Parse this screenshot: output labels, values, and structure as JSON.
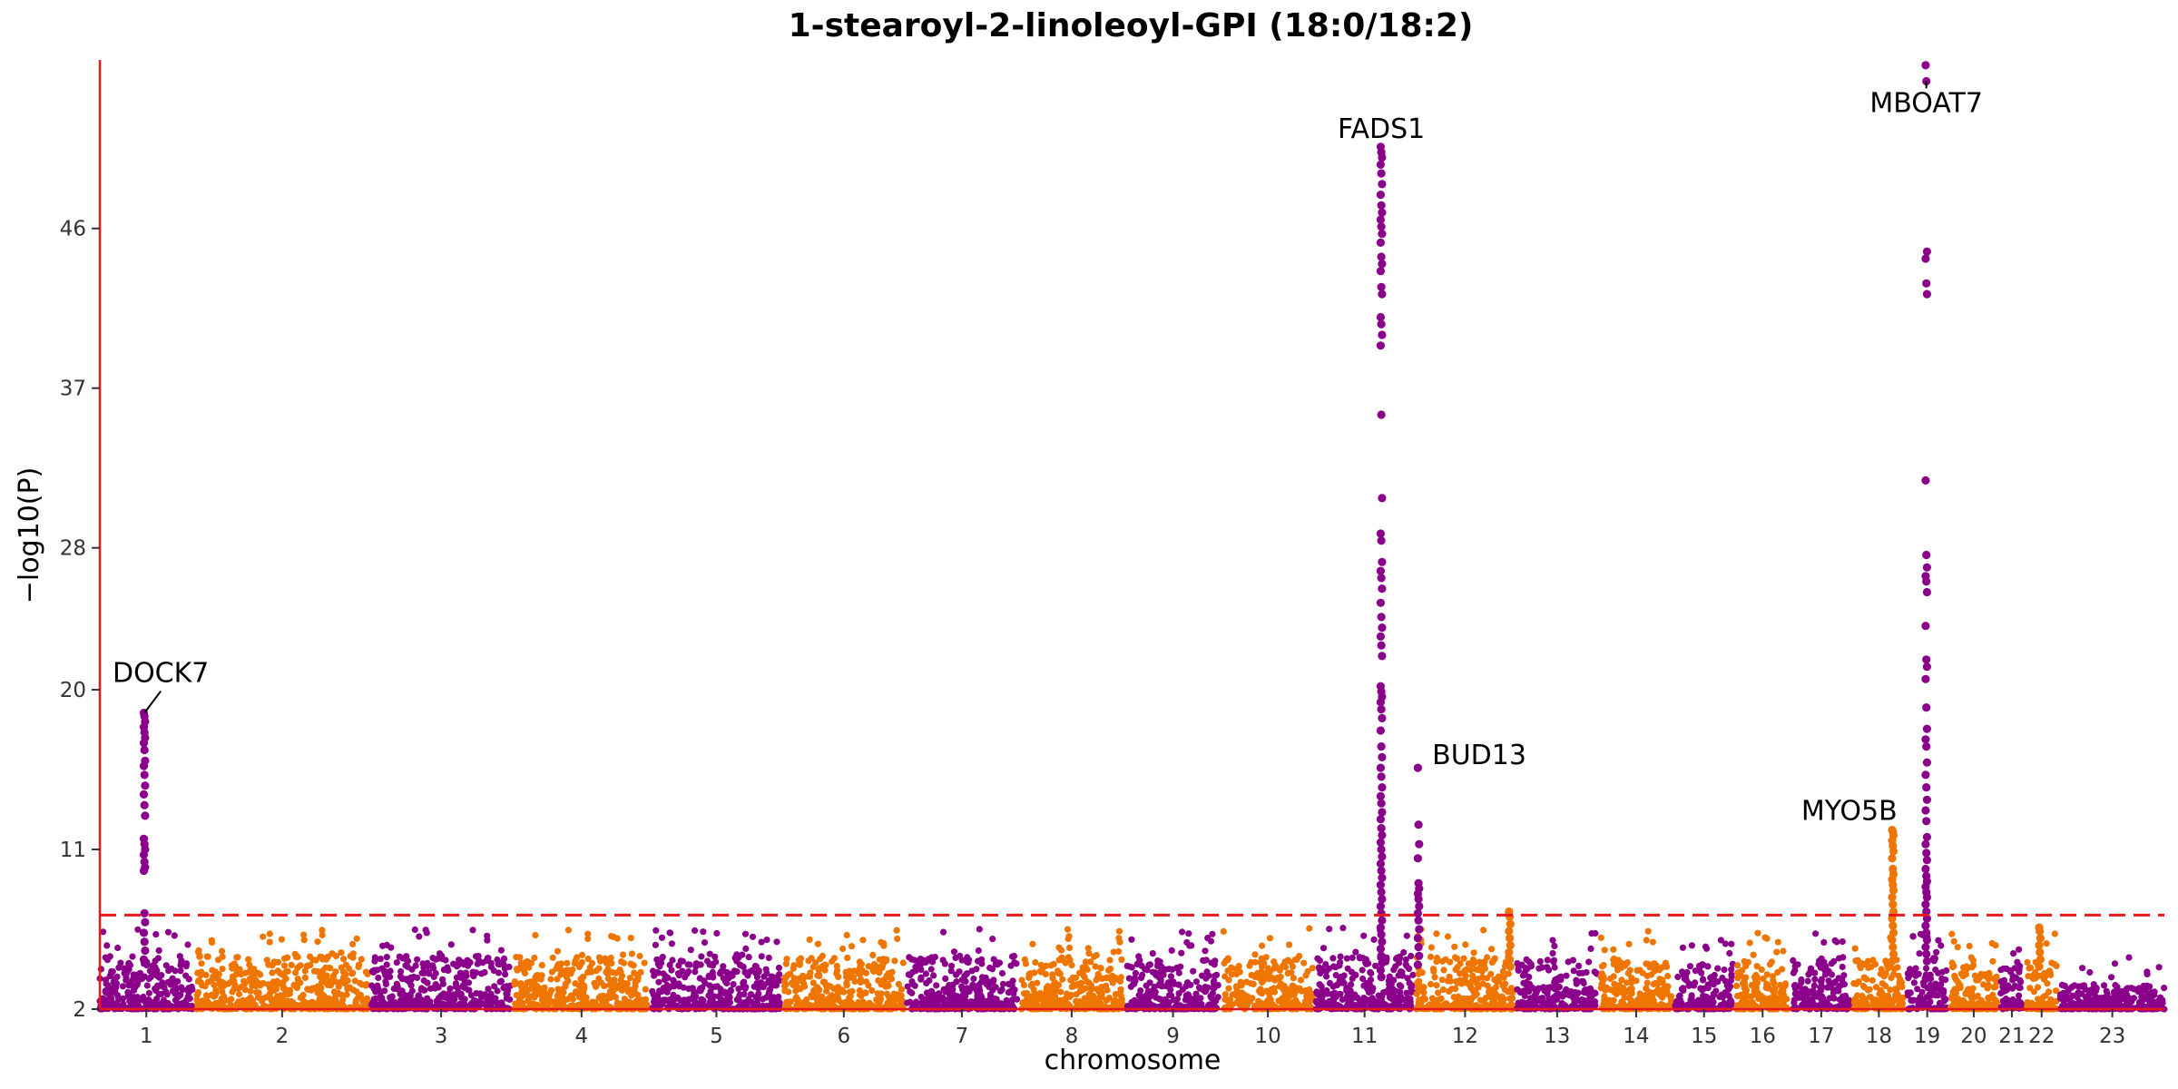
{
  "chart_data": {
    "type": "scatter",
    "title": "1-stearoyl-2-linoleoyl-GPI (18:0/18:2)",
    "xlabel": "chromosome",
    "ylabel": "−log10(P)",
    "ylim": [
      2,
      55.5
    ],
    "yticks": [
      2,
      11,
      20,
      28,
      37,
      46
    ],
    "threshold": 7.3,
    "grid": false,
    "legend": "none",
    "colors": {
      "odd": "#8B008B",
      "even": "#EE7600",
      "axis": "#e8191c",
      "threshold": "#e8191c"
    },
    "chromosomes": [
      {
        "label": "1",
        "start": 0,
        "end": 50,
        "height": 3.0
      },
      {
        "label": "2",
        "start": 52,
        "end": 144,
        "height": 3.0
      },
      {
        "label": "3",
        "start": 146,
        "end": 221,
        "height": 3.0
      },
      {
        "label": "4",
        "start": 223,
        "end": 295,
        "height": 3.0
      },
      {
        "label": "5",
        "start": 297,
        "end": 366,
        "height": 3.0
      },
      {
        "label": "6",
        "start": 368,
        "end": 432,
        "height": 3.0
      },
      {
        "label": "7",
        "start": 434,
        "end": 493,
        "height": 3.0
      },
      {
        "label": "8",
        "start": 495,
        "end": 550,
        "height": 3.0
      },
      {
        "label": "9",
        "start": 552,
        "end": 602,
        "height": 2.8
      },
      {
        "label": "10",
        "start": 604,
        "end": 652,
        "height": 3.0
      },
      {
        "label": "11",
        "start": 654,
        "end": 706,
        "height": 3.0
      },
      {
        "label": "12",
        "start": 708,
        "end": 760,
        "height": 3.0
      },
      {
        "label": "13",
        "start": 762,
        "end": 805,
        "height": 2.8
      },
      {
        "label": "14",
        "start": 807,
        "end": 845,
        "height": 2.8
      },
      {
        "label": "15",
        "start": 847,
        "end": 878,
        "height": 2.6
      },
      {
        "label": "16",
        "start": 880,
        "end": 908,
        "height": 2.8
      },
      {
        "label": "17",
        "start": 910,
        "end": 941,
        "height": 2.8
      },
      {
        "label": "18",
        "start": 943,
        "end": 970,
        "height": 2.8
      },
      {
        "label": "19",
        "start": 972,
        "end": 993,
        "height": 2.8
      },
      {
        "label": "20",
        "start": 995,
        "end": 1020,
        "height": 2.8
      },
      {
        "label": "21",
        "start": 1022,
        "end": 1034,
        "height": 2.6
      },
      {
        "label": "22",
        "start": 1036,
        "end": 1052,
        "height": 2.8
      },
      {
        "label": "23",
        "start": 1054,
        "end": 1110,
        "height": 1.4
      }
    ],
    "peaks": [
      {
        "name": "DOCK7",
        "chr": "1",
        "x": 24,
        "values": [
          18.7,
          18.5,
          18.2,
          17.9,
          17.6,
          17.3,
          17.0,
          16.6,
          16.0,
          15.7,
          15.2,
          14.6,
          14.1,
          13.5,
          12.9,
          11.6,
          11.3,
          11.0,
          10.7,
          10.3,
          10.0,
          9.8,
          7.4,
          6.9,
          6.3,
          5.8,
          5.3,
          4.8
        ]
      },
      {
        "name": "FADS1",
        "chr": "11",
        "x": 689,
        "values": [
          50.6,
          50.3,
          50.0,
          49.6,
          49.1,
          48.5,
          47.9,
          47.3,
          46.9,
          46.5,
          46.1,
          45.7,
          45.2,
          44.4,
          44.0,
          43.6,
          42.7,
          42.3,
          41.0,
          40.6,
          40.0,
          39.4,
          35.5,
          30.8,
          28.8,
          28.4,
          27.2,
          26.7,
          26.3,
          25.7,
          24.9,
          24.1,
          23.5,
          23.0,
          22.5,
          21.9,
          20.2,
          19.9,
          19.6,
          19.3,
          18.9,
          18.4,
          17.7,
          16.8,
          16.2,
          15.6,
          15.1,
          14.5,
          14.0,
          13.6,
          13.1,
          12.7,
          12.2,
          11.8,
          11.4,
          11.0,
          10.6,
          10.2,
          9.8,
          9.4,
          9.0,
          8.6,
          8.2,
          7.8,
          7.4,
          7.0,
          6.6,
          6.2,
          5.8,
          5.4,
          5.0,
          4.6,
          4.2,
          3.8
        ]
      },
      {
        "name": "BUD13",
        "chr": "11",
        "x": 709,
        "values": [
          15.6,
          12.4,
          11.3,
          10.5,
          9.1,
          8.8,
          8.5,
          8.2,
          7.8,
          7.4,
          7.0,
          6.5,
          6.0,
          5.5,
          5.0,
          4.5
        ]
      },
      {
        "name": "",
        "chr": "12",
        "x": 758,
        "values": [
          7.5,
          7.2,
          6.8,
          6.4,
          6.0,
          5.6,
          5.2,
          4.8,
          4.4
        ]
      },
      {
        "name": "MYO5B",
        "chr": "18",
        "x": 964,
        "values": [
          12.1,
          12.0,
          11.8,
          11.5,
          11.2,
          10.9,
          10.5,
          9.9,
          9.6,
          9.3,
          9.0,
          8.7,
          8.3,
          7.9,
          7.5,
          7.1,
          6.7,
          6.3,
          5.9,
          5.5,
          5.1,
          4.7
        ]
      },
      {
        "name": "MBOAT7",
        "chr": "19",
        "x": 982,
        "values": [
          55.2,
          54.3,
          44.7,
          44.3,
          42.9,
          42.3,
          31.8,
          27.6,
          26.9,
          26.4,
          26.1,
          25.5,
          23.6,
          21.7,
          21.3,
          20.6,
          19.0,
          17.8,
          17.2,
          16.8,
          15.9,
          15.2,
          14.5,
          13.8,
          13.2,
          12.6,
          11.7,
          11.3,
          10.8,
          10.4,
          9.9,
          9.5,
          9.2,
          8.9,
          8.6,
          8.3,
          7.9,
          7.5,
          7.1,
          6.7,
          6.3,
          5.9,
          5.5,
          5.1,
          4.7
        ]
      },
      {
        "name": "",
        "chr": "22",
        "x": 1043,
        "values": [
          6.6,
          6.4,
          6.0,
          5.6,
          5.2,
          4.8,
          4.4
        ]
      }
    ],
    "annotations": [
      {
        "text": "DOCK7",
        "x": 24,
        "y": 18.7,
        "pointer": true
      },
      {
        "text": "FADS1",
        "x": 689,
        "y": 50.6,
        "pointer": false
      },
      {
        "text": "BUD13",
        "x": 709,
        "y": 15.6,
        "pointer": false
      },
      {
        "text": "MYO5B",
        "x": 964,
        "y": 12.1,
        "pointer": false
      },
      {
        "text": "MBOAT7",
        "x": 982,
        "y": 54.3,
        "pointer": true
      }
    ]
  }
}
